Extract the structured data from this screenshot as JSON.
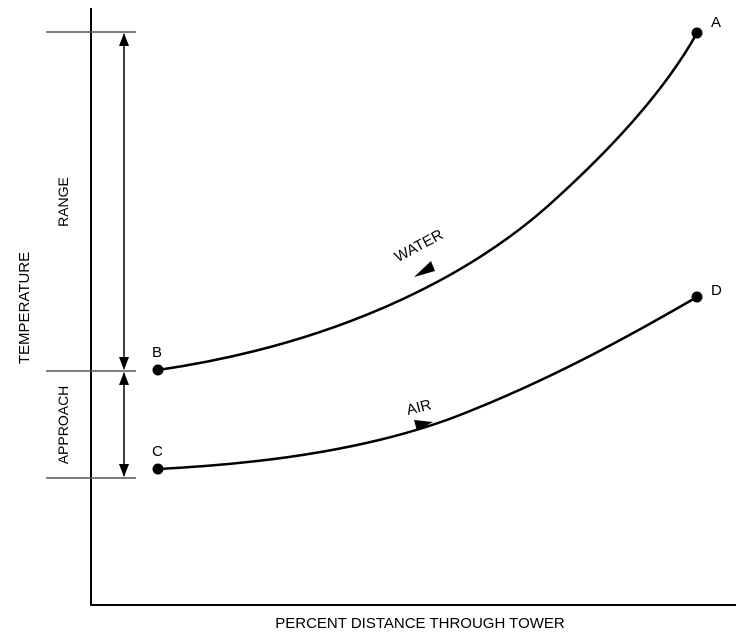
{
  "diagram": {
    "x_axis_label": "PERCENT DISTANCE THROUGH TOWER",
    "y_axis_label": "TEMPERATURE",
    "dimensions": {
      "range_label": "RANGE",
      "approach_label": "APPROACH"
    },
    "curves": [
      {
        "id": "water",
        "label": "WATER",
        "arrow_direction": "toward B",
        "from_point": "A",
        "to_point": "B"
      },
      {
        "id": "air",
        "label": "AIR",
        "arrow_direction": "toward D",
        "from_point": "C",
        "to_point": "D"
      }
    ],
    "points": {
      "a": "A",
      "b": "B",
      "c": "C",
      "d": "D"
    },
    "colors": {
      "line": "#000000",
      "background": "#ffffff",
      "guide": "#555555"
    }
  }
}
